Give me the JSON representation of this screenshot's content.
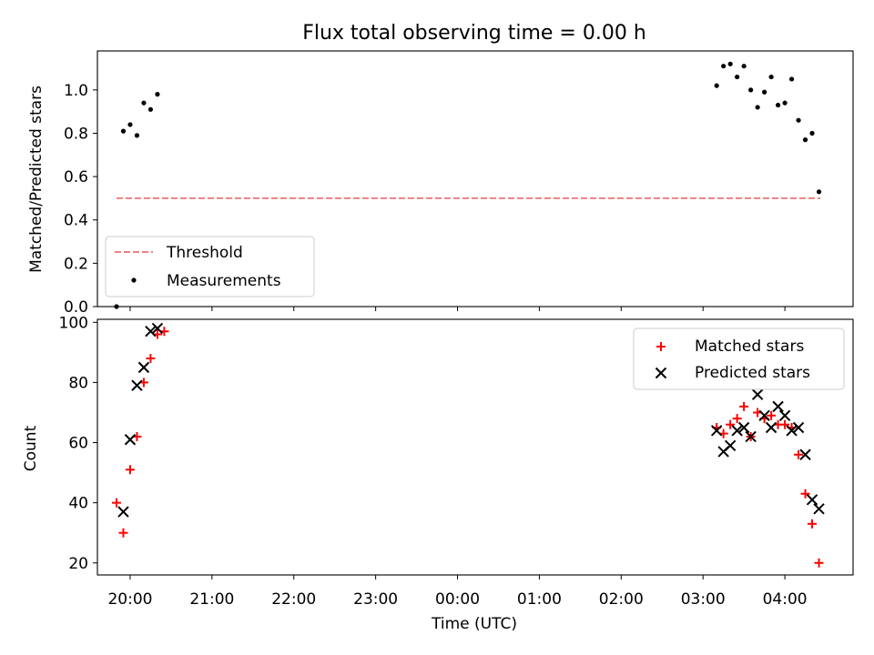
{
  "chart_data": [
    {
      "type": "scatter",
      "title": "Flux total observing time = 0.00 h",
      "xlabel": "",
      "ylabel": "Matched/Predicted stars",
      "xlim": [
        "19:36",
        "04:50"
      ],
      "ylim": [
        0.0,
        1.18
      ],
      "yticks": [
        0.0,
        0.2,
        0.4,
        0.6,
        0.8,
        1.0
      ],
      "ytick_labels": [
        "0.0",
        "0.2",
        "0.4",
        "0.6",
        "0.8",
        "1.0"
      ],
      "legend_position": "lower-left",
      "threshold": {
        "name": "Threshold",
        "value": 0.5,
        "x_start": "19:50",
        "x_end": "04:26",
        "color": "#f08080"
      },
      "series": [
        {
          "name": "Measurements",
          "color": "#000000",
          "x": [
            "19:50",
            "19:55",
            "20:00",
            "20:05",
            "20:10",
            "20:15",
            "20:20",
            "03:10",
            "03:15",
            "03:20",
            "03:25",
            "03:30",
            "03:35",
            "03:40",
            "03:45",
            "03:50",
            "03:55",
            "04:00",
            "04:05",
            "04:10",
            "04:15",
            "04:20",
            "04:25"
          ],
          "y": [
            0.0,
            0.81,
            0.84,
            0.79,
            0.94,
            0.91,
            0.98,
            1.02,
            1.11,
            1.12,
            1.06,
            1.11,
            1.0,
            0.92,
            0.99,
            1.06,
            0.93,
            0.94,
            1.05,
            0.86,
            0.77,
            0.8,
            0.53
          ]
        }
      ]
    },
    {
      "type": "scatter",
      "title": "",
      "xlabel": "Time (UTC)",
      "ylabel": "Count",
      "xlim": [
        "19:36",
        "04:50"
      ],
      "ylim": [
        16,
        101
      ],
      "yticks": [
        20,
        40,
        60,
        80,
        100
      ],
      "ytick_labels": [
        "20",
        "40",
        "60",
        "80",
        "100"
      ],
      "xticks": [
        "20:00",
        "21:00",
        "22:00",
        "23:00",
        "00:00",
        "01:00",
        "02:00",
        "03:00",
        "04:00"
      ],
      "legend_position": "upper-right",
      "series": [
        {
          "name": "Matched stars",
          "marker": "plus",
          "color": "#ff0000",
          "x": [
            "19:50",
            "19:55",
            "20:00",
            "20:05",
            "20:10",
            "20:15",
            "20:20",
            "20:25",
            "03:10",
            "03:15",
            "03:20",
            "03:25",
            "03:30",
            "03:35",
            "03:40",
            "03:45",
            "03:50",
            "03:55",
            "04:00",
            "04:05",
            "04:10",
            "04:15",
            "04:20",
            "04:25"
          ],
          "y": [
            40,
            30,
            51,
            62,
            80,
            88,
            96,
            97,
            65,
            63,
            66,
            68,
            72,
            62,
            70,
            68,
            69,
            66,
            66,
            65,
            56,
            43,
            33,
            20
          ]
        },
        {
          "name": "Predicted stars",
          "marker": "x",
          "color": "#000000",
          "x": [
            "19:55",
            "20:00",
            "20:05",
            "20:10",
            "20:15",
            "20:20",
            "03:10",
            "03:15",
            "03:20",
            "03:25",
            "03:30",
            "03:35",
            "03:40",
            "03:45",
            "03:50",
            "03:55",
            "04:00",
            "04:05",
            "04:10",
            "04:15",
            "04:20",
            "04:25"
          ],
          "y": [
            37,
            61,
            79,
            85,
            97,
            98,
            64,
            57,
            59,
            64,
            65,
            62,
            76,
            69,
            65,
            72,
            69,
            64,
            65,
            56,
            41,
            38
          ]
        }
      ]
    }
  ]
}
